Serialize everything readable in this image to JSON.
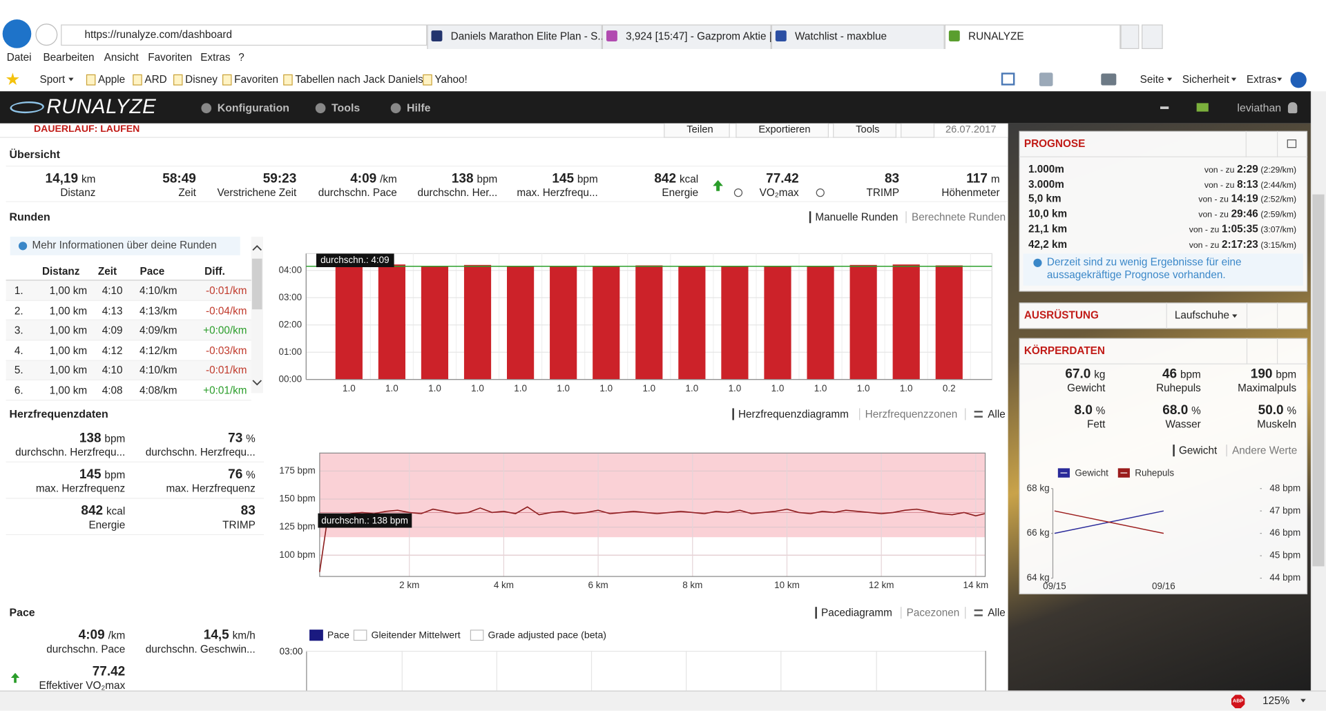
{
  "browser": {
    "url": "https://runalyze.com/dashboard",
    "tabs": [
      "Daniels Marathon Elite Plan - S...",
      "3,924 [15:47] - Gazprom Aktie |...",
      "Watchlist - maxblue",
      "RUNALYZE"
    ],
    "menu": [
      "Datei",
      "Bearbeiten",
      "Ansicht",
      "Favoriten",
      "Extras",
      "?"
    ],
    "favorites": [
      "Sport",
      "Apple",
      "ARD",
      "Disney",
      "Favoriten",
      "Tabellen nach Jack Daniels",
      "Yahoo!"
    ],
    "commands": [
      "Seite",
      "Sicherheit",
      "Extras"
    ],
    "zoom": "125%",
    "adblock": "ABP"
  },
  "navbar": {
    "logo": "RUNALYZE",
    "items": [
      "Konfiguration",
      "Tools",
      "Hilfe"
    ],
    "user": "leviathan"
  },
  "activity": {
    "title": "DAUERLAUF: LAUFEN",
    "actions": [
      "Teilen",
      "Exportieren",
      "Tools"
    ],
    "date": "26.07.2017"
  },
  "overview": {
    "heading": "Übersicht",
    "stats": [
      {
        "value": "14,19",
        "unit": "km",
        "label": "Distanz"
      },
      {
        "value": "58:49",
        "label": "Zeit"
      },
      {
        "value": "59:23",
        "label": "Verstrichene Zeit"
      },
      {
        "value": "4:09",
        "unit": "/km",
        "label": "durchschn. Pace"
      },
      {
        "value": "138",
        "unit": "bpm",
        "label": "durchschn. Her..."
      },
      {
        "value": "145",
        "unit": "bpm",
        "label": "max. Herzfrequ..."
      },
      {
        "value": "842",
        "unit": "kcal",
        "label": "Energie"
      },
      {
        "value": "77.42",
        "label": "VO₂max"
      },
      {
        "value": "83",
        "label": "TRIMP"
      },
      {
        "value": "117",
        "unit": "m",
        "label": "Höhenmeter"
      }
    ]
  },
  "laps": {
    "heading": "Runden",
    "tabs": [
      "Manuelle Runden",
      "Berechnete Runden"
    ],
    "info": "Mehr Informationen über deine Runden",
    "columns": [
      "Distanz",
      "Zeit",
      "Pace",
      "Diff."
    ],
    "rows": [
      [
        "1.",
        "1,00 km",
        "4:10",
        "4:10/km",
        "-0:01/km"
      ],
      [
        "2.",
        "1,00 km",
        "4:13",
        "4:13/km",
        "-0:04/km"
      ],
      [
        "3.",
        "1,00 km",
        "4:09",
        "4:09/km",
        "+0:00/km"
      ],
      [
        "4.",
        "1,00 km",
        "4:12",
        "4:12/km",
        "-0:03/km"
      ],
      [
        "5.",
        "1,00 km",
        "4:10",
        "4:10/km",
        "-0:01/km"
      ],
      [
        "6.",
        "1,00 km",
        "4:08",
        "4:08/km",
        "+0:01/km"
      ]
    ]
  },
  "heart_rate": {
    "heading": "Herzfrequenzdaten",
    "tabs": [
      "Herzfrequenzdiagramm",
      "Herzfrequenzzonen",
      "Alle"
    ],
    "stats": [
      {
        "value": "138",
        "unit": "bpm",
        "label": "durchschn. Herzfrequ..."
      },
      {
        "value": "73",
        "unit": "%",
        "label": "durchschn. Herzfrequ..."
      },
      {
        "value": "145",
        "unit": "bpm",
        "label": "max. Herzfrequenz"
      },
      {
        "value": "76",
        "unit": "%",
        "label": "max. Herzfrequenz"
      },
      {
        "value": "842",
        "unit": "kcal",
        "label": "Energie"
      },
      {
        "value": "83",
        "label": "TRIMP"
      }
    ]
  },
  "pace": {
    "heading": "Pace",
    "tabs": [
      "Pacediagramm",
      "Pacezonen",
      "Alle"
    ],
    "stats": [
      {
        "value": "4:09",
        "unit": "/km",
        "label": "durchschn. Pace"
      },
      {
        "value": "14,5",
        "unit": "km/h",
        "label": "durchschn. Geschwin..."
      },
      {
        "value": "77.42",
        "label": "Effektiver VO₂max"
      }
    ],
    "legend": [
      "Pace",
      "Gleitender Mittelwert",
      "Grade adjusted pace (beta)"
    ],
    "axis_label": "03:00"
  },
  "prognosis": {
    "heading": "PROGNOSE",
    "range": "von - zu",
    "rows": [
      {
        "distance": "1.000m",
        "time": "2:29",
        "pace": "(2:29/km)"
      },
      {
        "distance": "3.000m",
        "time": "8:13",
        "pace": "(2:44/km)"
      },
      {
        "distance": "5,0 km",
        "time": "14:19",
        "pace": "(2:52/km)"
      },
      {
        "distance": "10,0 km",
        "time": "29:46",
        "pace": "(2:59/km)"
      },
      {
        "distance": "21,1 km",
        "time": "1:05:35",
        "pace": "(3:07/km)"
      },
      {
        "distance": "42,2 km",
        "time": "2:17:23",
        "pace": "(3:15/km)"
      }
    ],
    "info": "Derzeit sind zu wenig Ergebnisse für eine aussagekräftige Prognose vorhanden."
  },
  "equipment": {
    "heading": "AUSRÜSTUNG",
    "select": "Laufschuhe"
  },
  "body": {
    "heading": "KÖRPERDATEN",
    "stats": [
      {
        "value": "67.0",
        "unit": "kg",
        "label": "Gewicht"
      },
      {
        "value": "46",
        "unit": "bpm",
        "label": "Ruhepuls"
      },
      {
        "value": "190",
        "unit": "bpm",
        "label": "Maximalpuls"
      },
      {
        "value": "8.0",
        "unit": "%",
        "label": "Fett"
      },
      {
        "value": "68.0",
        "unit": "%",
        "label": "Wasser"
      },
      {
        "value": "50.0",
        "unit": "%",
        "label": "Muskeln"
      }
    ],
    "tabs": [
      "Gewicht",
      "Andere Werte"
    ]
  },
  "chart_data": [
    {
      "type": "bar",
      "categories": [
        "1.0",
        "1.0",
        "1.0",
        "1.0",
        "1.0",
        "1.0",
        "1.0",
        "1.0",
        "1.0",
        "1.0",
        "1.0",
        "1.0",
        "1.0",
        "1.0",
        "0.2"
      ],
      "values": [
        250,
        253,
        249,
        252,
        250,
        248,
        249,
        251,
        248,
        250,
        249,
        250,
        252,
        253,
        251
      ],
      "color": "#cc2229",
      "ylim": [
        0,
        277
      ],
      "yticks": [
        {
          "value": 0,
          "label": "00:00"
        },
        {
          "value": 60,
          "label": "01:00"
        },
        {
          "value": 120,
          "label": "02:00"
        },
        {
          "value": 180,
          "label": "03:00"
        },
        {
          "value": 240,
          "label": "04:00"
        }
      ],
      "grid": true,
      "average": {
        "value": 249,
        "label": "durchschn.: 4:09"
      },
      "average_color": "#2ca02c"
    },
    {
      "type": "line",
      "x": [
        0.1,
        0.25,
        0.5,
        0.75,
        1,
        1.25,
        1.5,
        1.75,
        2,
        2.25,
        2.5,
        2.75,
        3,
        3.25,
        3.5,
        3.75,
        4,
        4.25,
        4.5,
        4.75,
        5,
        5.25,
        5.5,
        5.75,
        6,
        6.25,
        6.5,
        6.75,
        7,
        7.25,
        7.5,
        7.75,
        8,
        8.25,
        8.5,
        8.75,
        9,
        9.25,
        9.5,
        9.75,
        10,
        10.25,
        10.5,
        10.75,
        11,
        11.25,
        11.5,
        11.75,
        12,
        12.25,
        12.5,
        12.75,
        13,
        13.25,
        13.5,
        13.75,
        14,
        14.19
      ],
      "values": [
        85,
        128,
        134,
        137,
        138,
        137,
        139,
        140,
        138,
        137,
        141,
        139,
        137,
        138,
        142,
        138,
        139,
        137,
        143,
        136,
        138,
        139,
        137,
        138,
        140,
        137,
        138,
        139,
        138,
        137,
        138,
        139,
        138,
        137,
        139,
        138,
        140,
        137,
        138,
        139,
        141,
        138,
        137,
        139,
        138,
        140,
        139,
        138,
        137,
        138,
        140,
        141,
        139,
        137,
        136,
        138,
        135,
        137
      ],
      "color": "#8b1a1a",
      "xlim": [
        0.1,
        14.2
      ],
      "xticks": [
        {
          "value": 2,
          "label": "2 km"
        },
        {
          "value": 4,
          "label": "4 km"
        },
        {
          "value": 6,
          "label": "6 km"
        },
        {
          "value": 8,
          "label": "8 km"
        },
        {
          "value": 10,
          "label": "10 km"
        },
        {
          "value": 12,
          "label": "12 km"
        },
        {
          "value": 14,
          "label": "14 km"
        }
      ],
      "ylim": [
        81,
        191
      ],
      "yticks": [
        {
          "value": 100,
          "label": "100 bpm"
        },
        {
          "value": 125,
          "label": "125 bpm"
        },
        {
          "value": 150,
          "label": "150 bpm"
        },
        {
          "value": 175,
          "label": "175 bpm"
        }
      ],
      "grid": true,
      "zone": [
        116,
        191
      ],
      "zone_color": "#f7b3ba",
      "average": {
        "value": 138,
        "label": "durchschn.: 138 bpm"
      }
    },
    {
      "type": "line",
      "categories": [
        "09/15",
        "09/16"
      ],
      "series": [
        {
          "name": "Gewicht",
          "color": "#2a2a9a",
          "values": [
            66.0,
            67.0
          ]
        },
        {
          "name": "Ruhepuls",
          "color": "#9b1c1c",
          "axis": "y2",
          "values": [
            47,
            46
          ]
        }
      ],
      "ylim": [
        64,
        68
      ],
      "yticks": [
        {
          "value": 64,
          "label": "64 kg"
        },
        {
          "value": 66,
          "label": "66 kg"
        },
        {
          "value": 68,
          "label": "68 kg"
        }
      ],
      "y2lim": [
        44,
        48
      ],
      "y2ticks": [
        {
          "value": 44,
          "label": "44 bpm"
        },
        {
          "value": 45,
          "label": "45 bpm"
        },
        {
          "value": 46,
          "label": "46 bpm"
        },
        {
          "value": 47,
          "label": "47 bpm"
        },
        {
          "value": 48,
          "label": "48 bpm"
        }
      ],
      "grid": false
    }
  ]
}
